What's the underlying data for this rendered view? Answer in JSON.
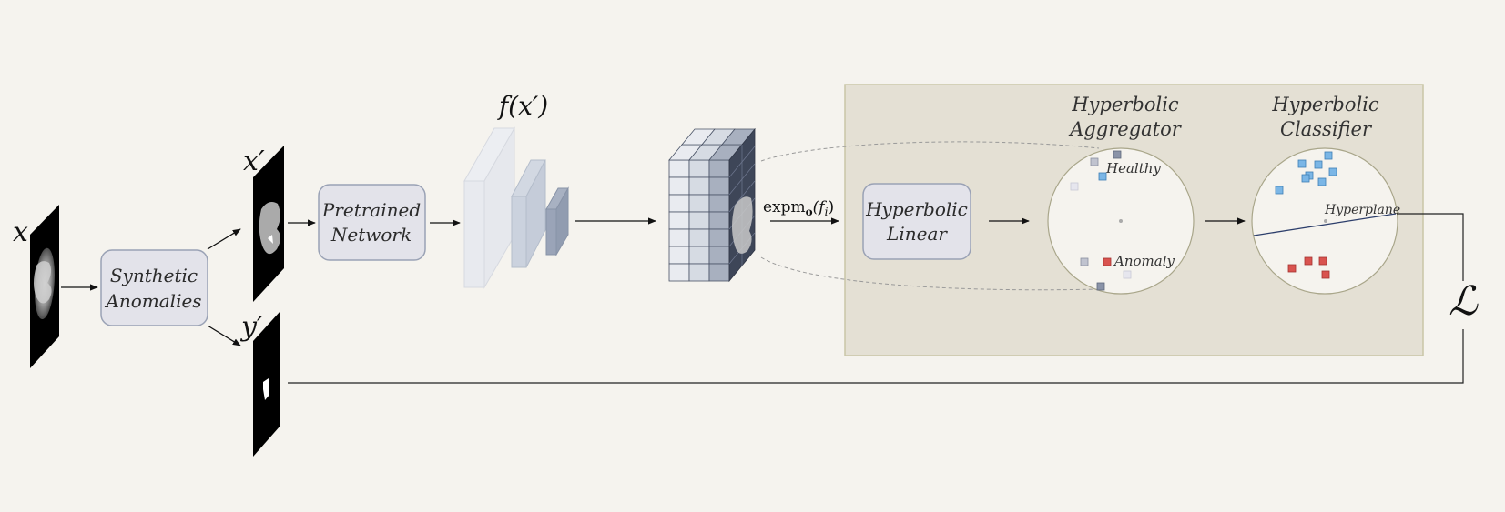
{
  "inputs": {
    "x_label": "x",
    "x_prime_label": "x′",
    "y_prime_label": "y′"
  },
  "boxes": {
    "synthetic_line1": "Synthetic",
    "synthetic_line2": "Anomalies",
    "pretrained_line1": "Pretrained",
    "pretrained_line2": "Network",
    "hyp_linear_line1": "Hyperbolic",
    "hyp_linear_line2": "Linear"
  },
  "feature": {
    "f_label": "f(x′)",
    "expmap_label_main": "expm",
    "expmap_label_sub": "o",
    "expmap_label_arg": "(f",
    "expmap_label_arg_sub": "i",
    "expmap_label_close": ")"
  },
  "aggregator": {
    "title_line1": "Hyperbolic",
    "title_line2": "Aggregator",
    "healthy_label": "Healthy",
    "anomaly_label": "Anomaly"
  },
  "classifier": {
    "title_line1": "Hyperbolic",
    "title_line2": "Classifier",
    "hyperplane_label": "Hyperplane"
  },
  "loss": {
    "symbol": "ℒ"
  },
  "colors": {
    "background": "#f5f3ee",
    "panel_fill": "#e4e0d4",
    "panel_stroke": "#c9c6a6",
    "box_fill": "#e3e3ea",
    "box_stroke": "#9aa2b5",
    "healthy_point": "#7bb6e6",
    "anomaly_point": "#d9534f"
  }
}
